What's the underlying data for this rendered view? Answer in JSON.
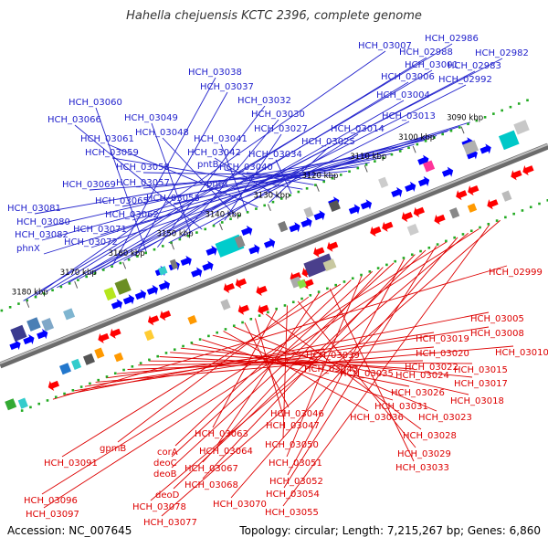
{
  "title": "Hahella chejuensis KCTC 2396, complete genome",
  "accession": "Accession: NC_007645",
  "summary": "Topology: circular; Length: 7,215,267 bp; Genes: 6,860",
  "colors": {
    "forward": "#0000ff",
    "reverse": "#ff0000",
    "backbone": "#808080",
    "tick": "#22aa22"
  },
  "kbp_labels": [
    "3090 kbp",
    "3100 kbp",
    "3110 kbp",
    "3120 kbp",
    "3130 kbp",
    "3140 kbp",
    "3150 kbp",
    "3160 kbp",
    "3170 kbp",
    "3180 kbp"
  ],
  "forward_genes": [
    "HCH_02986",
    "HCH_03007",
    "HCH_02988",
    "HCH_02982",
    "HCH_03001",
    "HCH_02983",
    "HCH_03006",
    "HCH_02992",
    "HCH_03038",
    "HCH_03004",
    "HCH_03037",
    "HCH_03060",
    "HCH_03032",
    "HCH_03013",
    "HCH_03030",
    "HCH_03049",
    "HCH_03066",
    "HCH_03014",
    "HCH_03027",
    "HCH_03048",
    "HCH_03041",
    "HCH_03061",
    "HCH_03025",
    "HCH_03042",
    "HCH_03034",
    "HCH_03059",
    "pntB",
    "HCH_03040",
    "HCH_03058",
    "HCH_03069",
    "HCH_03057",
    "pntA",
    "HCH_03065",
    "HCH_03053",
    "HCH_03081",
    "HCH_03062",
    "HCH_03080",
    "HCH_03071",
    "HCH_03082",
    "HCH_03072",
    "phnX"
  ],
  "reverse_genes": [
    "HCH_02999",
    "HCH_03005",
    "HCH_03008",
    "HCH_03019",
    "HCH_03010",
    "HCH_03039",
    "HCH_03020",
    "HCH_03043",
    "HCH_03022",
    "HCH_03015",
    "HCH_03035",
    "HCH_03024",
    "HCH_03017",
    "HCH_03026",
    "HCH_03031",
    "HCH_03018",
    "HCH_03036",
    "HCH_03023",
    "HCH_03046",
    "HCH_03047",
    "HCH_03028",
    "HCH_03063",
    "HCH_03050",
    "HCH_03029",
    "gpmB",
    "HCH_03064",
    "HCH_03033",
    "HCH_03091",
    "corA",
    "HCH_03051",
    "deoC",
    "HCH_03067",
    "deoB",
    "HCH_03052",
    "HCH_03068",
    "deoD",
    "HCH_03054",
    "HCH_03096",
    "HCH_03070",
    "HCH_03078",
    "HCH_03097",
    "HCH_03055",
    "HCH_03077"
  ]
}
